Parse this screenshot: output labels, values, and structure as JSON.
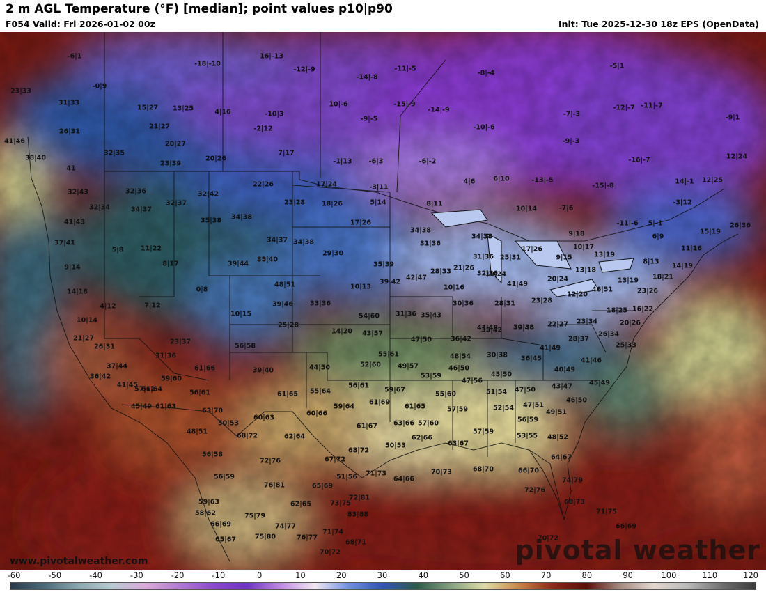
{
  "header": {
    "title": "2 m AGL Temperature (°F) [median]; point values p10|p90",
    "valid": "F054 Valid: Fri 2026-01-02 00z",
    "init": "Init: Tue 2025-12-30 18z EPS (OpenData)"
  },
  "footer": {
    "website": "www.pivotalweather.com",
    "brand": "pivotal weather"
  },
  "colorbar": {
    "ticks": [
      "-60",
      "-50",
      "-40",
      "-30",
      "-20",
      "-10",
      "0",
      "10",
      "20",
      "30",
      "40",
      "50",
      "60",
      "70",
      "80",
      "90",
      "100",
      "110",
      "120"
    ],
    "min": -60,
    "max": 120
  },
  "point_values": [
    {
      "text": "-6|1"
    },
    {
      "text": "-18|-10"
    },
    {
      "text": "16|-13"
    },
    {
      "text": "-12|-9"
    },
    {
      "text": "-14|-8"
    },
    {
      "text": "-11|-5"
    },
    {
      "text": "-8|-4"
    },
    {
      "text": "-5|1"
    },
    {
      "text": "23|33"
    },
    {
      "text": "-0|9"
    },
    {
      "text": "10|-6"
    },
    {
      "text": "-15|-9"
    },
    {
      "text": "-14|-9"
    },
    {
      "text": "-12|-7"
    },
    {
      "text": "-11|-7"
    },
    {
      "text": "-7|-3"
    },
    {
      "text": "-9|1"
    },
    {
      "text": "31|33"
    },
    {
      "text": "15|27"
    },
    {
      "text": "13|25"
    },
    {
      "text": "4|16"
    },
    {
      "text": "-10|3"
    },
    {
      "text": "-9|-5"
    },
    {
      "text": "-10|-6"
    },
    {
      "text": "26|31"
    },
    {
      "text": "21|27"
    },
    {
      "text": "-2|12"
    },
    {
      "text": "-9|-3"
    },
    {
      "text": "41|46"
    },
    {
      "text": "20|27"
    },
    {
      "text": "7|17"
    },
    {
      "text": "-16|-7"
    },
    {
      "text": "12|24"
    },
    {
      "text": "38|40"
    },
    {
      "text": "32|35"
    },
    {
      "text": "23|39"
    },
    {
      "text": "20|26"
    },
    {
      "text": "-1|13"
    },
    {
      "text": "-6|3"
    },
    {
      "text": "-6|-2"
    },
    {
      "text": "41"
    },
    {
      "text": "6|10"
    },
    {
      "text": "-13|-5"
    },
    {
      "text": "-15|-8"
    },
    {
      "text": "14|-1"
    },
    {
      "text": "12|25"
    },
    {
      "text": "32|43"
    },
    {
      "text": "32|36"
    },
    {
      "text": "32|42"
    },
    {
      "text": "22|26"
    },
    {
      "text": "17|24"
    },
    {
      "text": "-3|11"
    },
    {
      "text": "4|6"
    },
    {
      "text": "32|34"
    },
    {
      "text": "34|37"
    },
    {
      "text": "32|37"
    },
    {
      "text": "23|28"
    },
    {
      "text": "18|26"
    },
    {
      "text": "5|14"
    },
    {
      "text": "8|11"
    },
    {
      "text": "-7|6"
    },
    {
      "text": "-3|12"
    },
    {
      "text": "41|43"
    },
    {
      "text": "35|38"
    },
    {
      "text": "34|38"
    },
    {
      "text": "17|26"
    },
    {
      "text": "10|14"
    },
    {
      "text": "-11|-6"
    },
    {
      "text": "5|-1"
    },
    {
      "text": "26|36"
    },
    {
      "text": "37|41"
    },
    {
      "text": "34|38"
    },
    {
      "text": "34|38"
    },
    {
      "text": "9|18"
    },
    {
      "text": "6|9"
    },
    {
      "text": "15|19"
    },
    {
      "text": "5|8"
    },
    {
      "text": "11|22"
    },
    {
      "text": "34|37"
    },
    {
      "text": "34|38"
    },
    {
      "text": "31|36"
    },
    {
      "text": "17|26"
    },
    {
      "text": "10|17"
    },
    {
      "text": "11|16"
    },
    {
      "text": "9|14"
    },
    {
      "text": "8|17"
    },
    {
      "text": "39|44"
    },
    {
      "text": "35|40"
    },
    {
      "text": "29|30"
    },
    {
      "text": "35|39"
    },
    {
      "text": "31|36"
    },
    {
      "text": "25|31"
    },
    {
      "text": "9|15"
    },
    {
      "text": "13|19"
    },
    {
      "text": "8|13"
    },
    {
      "text": "14|18"
    },
    {
      "text": "0|8"
    },
    {
      "text": "48|51"
    },
    {
      "text": "39|42"
    },
    {
      "text": "42|47"
    },
    {
      "text": "28|33"
    },
    {
      "text": "21|26"
    },
    {
      "text": "19|24"
    },
    {
      "text": "13|18"
    },
    {
      "text": "14|19"
    },
    {
      "text": "10|13"
    },
    {
      "text": "10|16"
    },
    {
      "text": "32|36"
    },
    {
      "text": "20|24"
    },
    {
      "text": "13|19"
    },
    {
      "text": "18|21"
    },
    {
      "text": "4|12"
    },
    {
      "text": "7|12"
    },
    {
      "text": "39|46"
    },
    {
      "text": "33|36"
    },
    {
      "text": "41|49"
    },
    {
      "text": "46|51"
    },
    {
      "text": "12|20"
    },
    {
      "text": "10|14"
    },
    {
      "text": "10|15"
    },
    {
      "text": "54|60"
    },
    {
      "text": "31|36"
    },
    {
      "text": "35|43"
    },
    {
      "text": "30|36"
    },
    {
      "text": "28|31"
    },
    {
      "text": "23|28"
    },
    {
      "text": "18|25"
    },
    {
      "text": "16|22"
    },
    {
      "text": "23|26"
    },
    {
      "text": "25|28"
    },
    {
      "text": "14|20"
    },
    {
      "text": "43|57"
    },
    {
      "text": "41|48"
    },
    {
      "text": "39|46"
    },
    {
      "text": "23|34"
    },
    {
      "text": "22|27"
    },
    {
      "text": "20|26"
    },
    {
      "text": "21|27"
    },
    {
      "text": "23|37"
    },
    {
      "text": "56|58"
    },
    {
      "text": "47|50"
    },
    {
      "text": "36|42"
    },
    {
      "text": "35|42"
    },
    {
      "text": "30|38"
    },
    {
      "text": "28|37"
    },
    {
      "text": "26|34"
    },
    {
      "text": "25|33"
    },
    {
      "text": "26|31"
    },
    {
      "text": "31|36"
    },
    {
      "text": "55|61"
    },
    {
      "text": "48|54"
    },
    {
      "text": "41|49"
    },
    {
      "text": "30|38"
    },
    {
      "text": "36|45"
    },
    {
      "text": "37|44"
    },
    {
      "text": "61|66"
    },
    {
      "text": "39|40"
    },
    {
      "text": "44|50"
    },
    {
      "text": "52|60"
    },
    {
      "text": "49|57"
    },
    {
      "text": "46|50"
    },
    {
      "text": "40|49"
    },
    {
      "text": "41|46"
    },
    {
      "text": "36|42"
    },
    {
      "text": "59|60"
    },
    {
      "text": "57|62"
    },
    {
      "text": "56|61"
    },
    {
      "text": "53|59"
    },
    {
      "text": "47|56"
    },
    {
      "text": "45|50"
    },
    {
      "text": "43|47"
    },
    {
      "text": "45|49"
    },
    {
      "text": "41|45"
    },
    {
      "text": "61|64"
    },
    {
      "text": "56|61"
    },
    {
      "text": "61|65"
    },
    {
      "text": "55|64"
    },
    {
      "text": "59|67"
    },
    {
      "text": "55|60"
    },
    {
      "text": "51|54"
    },
    {
      "text": "47|50"
    },
    {
      "text": "46|50"
    },
    {
      "text": "45|49"
    },
    {
      "text": "61|63"
    },
    {
      "text": "63|70"
    },
    {
      "text": "59|64"
    },
    {
      "text": "61|69"
    },
    {
      "text": "61|65"
    },
    {
      "text": "57|59"
    },
    {
      "text": "52|54"
    },
    {
      "text": "47|51"
    },
    {
      "text": "49|51"
    },
    {
      "text": "50|53"
    },
    {
      "text": "60|63"
    },
    {
      "text": "60|66"
    },
    {
      "text": "61|67"
    },
    {
      "text": "63|66"
    },
    {
      "text": "57|60"
    },
    {
      "text": "56|59"
    },
    {
      "text": "48|51"
    },
    {
      "text": "68|72"
    },
    {
      "text": "62|64"
    },
    {
      "text": "62|66"
    },
    {
      "text": "57|59"
    },
    {
      "text": "53|55"
    },
    {
      "text": "48|52"
    },
    {
      "text": "50|53"
    },
    {
      "text": "63|67"
    },
    {
      "text": "56|58"
    },
    {
      "text": "72|76"
    },
    {
      "text": "67|72"
    },
    {
      "text": "68|72"
    },
    {
      "text": "64|67"
    },
    {
      "text": "51|56"
    },
    {
      "text": "71|73"
    },
    {
      "text": "64|66"
    },
    {
      "text": "70|73"
    },
    {
      "text": "68|70"
    },
    {
      "text": "66|70"
    },
    {
      "text": "56|59"
    },
    {
      "text": "76|81"
    },
    {
      "text": "65|69"
    },
    {
      "text": "74|79"
    },
    {
      "text": "59|63"
    },
    {
      "text": "72|81"
    },
    {
      "text": "72|76"
    },
    {
      "text": "62|65"
    },
    {
      "text": "73|75"
    },
    {
      "text": "68|73"
    },
    {
      "text": "58|62"
    },
    {
      "text": "75|79"
    },
    {
      "text": "83|88"
    },
    {
      "text": "71|75"
    },
    {
      "text": "66|69"
    },
    {
      "text": "74|77"
    },
    {
      "text": "66|69"
    },
    {
      "text": "71|74"
    },
    {
      "text": "65|67"
    },
    {
      "text": "75|80"
    },
    {
      "text": "76|77"
    },
    {
      "text": "68|71"
    },
    {
      "text": "70|72"
    },
    {
      "text": "70|72"
    },
    {
      "text": "66|68"
    }
  ]
}
